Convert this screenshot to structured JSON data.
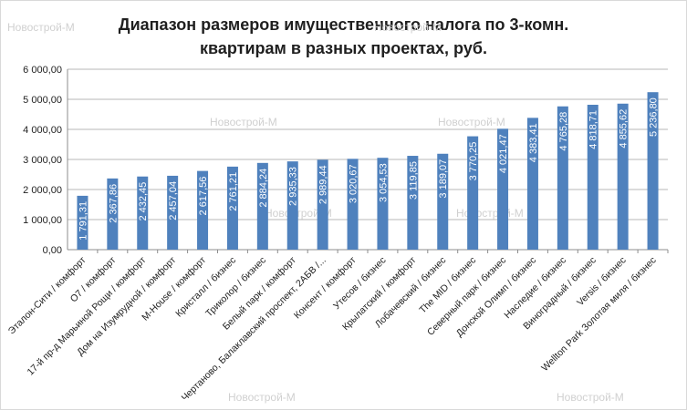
{
  "chart_data": {
    "type": "bar",
    "title_lines": [
      "Диапазон размеров имущественного налога по 3-комн.",
      "квартирам в разных проектах, руб."
    ],
    "xlabel": "",
    "ylabel": "",
    "ylim": [
      0,
      6000
    ],
    "yticks": [
      "0,00",
      "1 000,00",
      "2 000,00",
      "3 000,00",
      "4 000,00",
      "5 000,00",
      "6 000,00"
    ],
    "grid": true,
    "bar_color": "#4f81bd",
    "categories": [
      "Эталон-Сити / комфорт",
      "О7 / комфорт",
      "17-й пр-д Марьиной Рощи / комфорт",
      "Дом на Изумрудной / комфорт",
      "M-House / комфорт",
      "Кристалл / бизнес",
      "Триколор / бизнес",
      "Белый парк / комфорт",
      "Чертаново, Балаклавский проспект, 2АБВ /...",
      "Консент / комфорт",
      "Утесов / бизнес",
      "Крылатский / комфорт",
      "Лобачевский / бизнес",
      "The MID / бизнес",
      "Северный парк / бизнес",
      "Донской Олимп / бизнес",
      "Наследие / бизнес",
      "Виноградный / бизнес",
      "Versis / бизнес",
      "Wellton Park Золотая миля / бизнес"
    ],
    "values": [
      1791.31,
      2367.86,
      2432.45,
      2457.04,
      2617.56,
      2761.21,
      2884.24,
      2935.33,
      2989.44,
      3020.67,
      3054.53,
      3119.85,
      3189.07,
      3770.25,
      4021.47,
      4383.41,
      4765.28,
      4818.71,
      4855.62,
      5236.8
    ],
    "value_labels": [
      "1 791,31",
      "2 367,86",
      "2 432,45",
      "2 457,04",
      "2 617,56",
      "2 761,21",
      "2 884,24",
      "2 935,33",
      "2 989,44",
      "3 020,67",
      "3 054,53",
      "3 119,85",
      "3 189,07",
      "3 770,25",
      "4 021,47",
      "4 383,41",
      "4 765,28",
      "4 818,71",
      "4 855,62",
      "5 236,80"
    ]
  },
  "watermark": "Новострой-М"
}
